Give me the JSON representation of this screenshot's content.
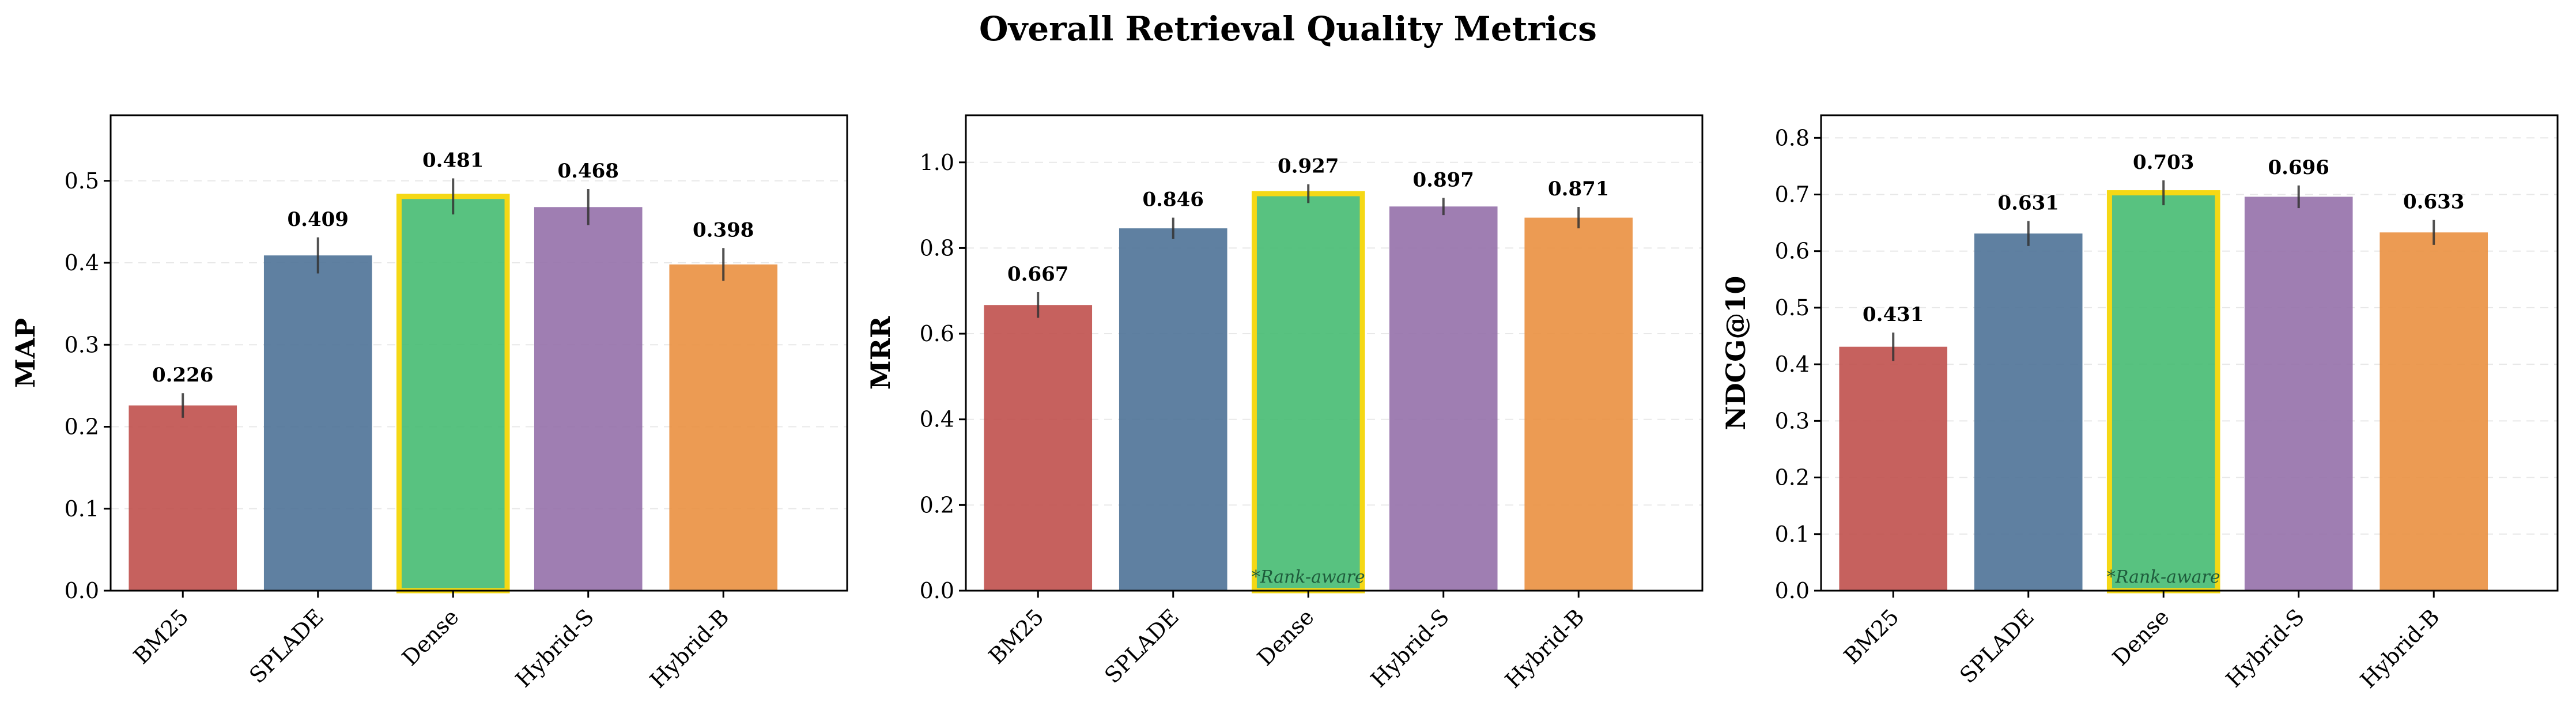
{
  "figure": {
    "title": "Overall Retrieval Quality Metrics"
  },
  "chart_data": [
    {
      "type": "bar",
      "title": "",
      "xlabel": "",
      "ylabel": "MAP",
      "categories": [
        "BM25",
        "SPLADE",
        "Dense",
        "Hybrid-S",
        "Hybrid-B"
      ],
      "values": [
        0.226,
        0.409,
        0.481,
        0.468,
        0.398
      ],
      "value_labels": [
        "0.226",
        "0.409",
        "0.481",
        "0.468",
        "0.398"
      ],
      "errors": [
        0.015,
        0.022,
        0.022,
        0.022,
        0.02
      ],
      "colors": [
        "#c0504d",
        "#4e7297",
        "#46bb72",
        "#9570aa",
        "#ea9040"
      ],
      "highlight_index": 2,
      "highlight_color": "#f5d815",
      "note": "",
      "ylim": [
        0,
        0.58
      ],
      "yticks": [
        0.0,
        0.1,
        0.2,
        0.3,
        0.4,
        0.5
      ],
      "ytick_labels": [
        "0.0",
        "0.1",
        "0.2",
        "0.3",
        "0.4",
        "0.5"
      ],
      "grid": true,
      "legend": "none"
    },
    {
      "type": "bar",
      "title": "",
      "xlabel": "",
      "ylabel": "MRR",
      "categories": [
        "BM25",
        "SPLADE",
        "Dense",
        "Hybrid-S",
        "Hybrid-B"
      ],
      "values": [
        0.667,
        0.846,
        0.927,
        0.897,
        0.871
      ],
      "value_labels": [
        "0.667",
        "0.846",
        "0.927",
        "0.897",
        "0.871"
      ],
      "errors": [
        0.03,
        0.025,
        0.022,
        0.02,
        0.025
      ],
      "colors": [
        "#c0504d",
        "#4e7297",
        "#46bb72",
        "#9570aa",
        "#ea9040"
      ],
      "highlight_index": 2,
      "highlight_color": "#f5d815",
      "note": "*Rank-aware",
      "ylim": [
        0,
        1.11
      ],
      "yticks": [
        0.0,
        0.2,
        0.4,
        0.6,
        0.8,
        1.0
      ],
      "ytick_labels": [
        "0.0",
        "0.2",
        "0.4",
        "0.6",
        "0.8",
        "1.0"
      ],
      "grid": true,
      "legend": "none"
    },
    {
      "type": "bar",
      "title": "",
      "xlabel": "",
      "ylabel": "NDCG@10",
      "categories": [
        "BM25",
        "SPLADE",
        "Dense",
        "Hybrid-S",
        "Hybrid-B"
      ],
      "values": [
        0.431,
        0.631,
        0.703,
        0.696,
        0.633
      ],
      "value_labels": [
        "0.431",
        "0.631",
        "0.703",
        "0.696",
        "0.633"
      ],
      "errors": [
        0.025,
        0.022,
        0.022,
        0.02,
        0.022
      ],
      "colors": [
        "#c0504d",
        "#4e7297",
        "#46bb72",
        "#9570aa",
        "#ea9040"
      ],
      "highlight_index": 2,
      "highlight_color": "#f5d815",
      "note": "*Rank-aware",
      "ylim": [
        0,
        0.84
      ],
      "yticks": [
        0.0,
        0.1,
        0.2,
        0.3,
        0.4,
        0.5,
        0.6,
        0.7,
        0.8
      ],
      "ytick_labels": [
        "0.0",
        "0.1",
        "0.2",
        "0.3",
        "0.4",
        "0.5",
        "0.6",
        "0.7",
        "0.8"
      ],
      "grid": true,
      "legend": "none"
    }
  ]
}
